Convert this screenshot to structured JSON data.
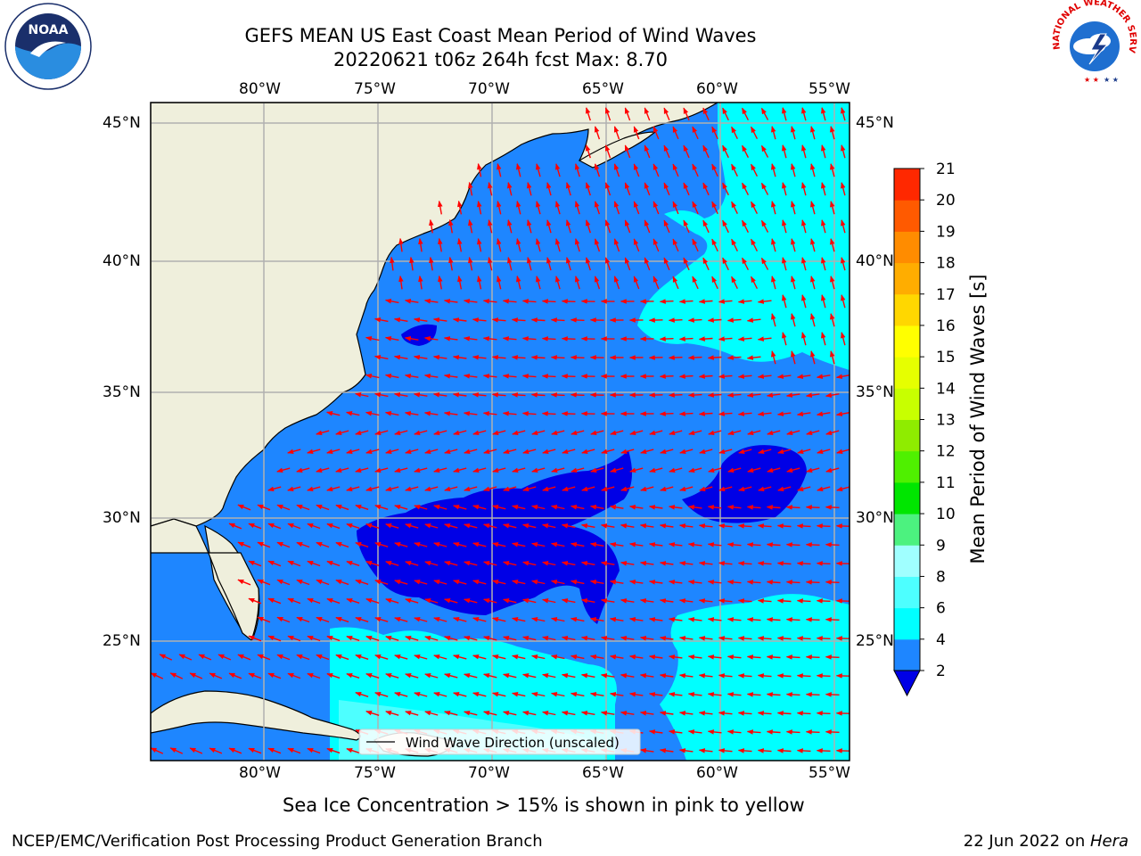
{
  "title": {
    "line1": "GEFS MEAN US East Coast Mean Period of Wind Waves",
    "line2": "20220621 t06z 264h fcst   Max: 8.70"
  },
  "logos": {
    "noaa_text": "NOAA",
    "noaa_ring_text": "NATIONAL OCEANIC AND ATMOSPHERIC ADMINISTRATION · U.S. DEPARTMENT OF COMMERCE",
    "nws_ring_text": "NATIONAL WEATHER SERVICE"
  },
  "map": {
    "lon_labels": [
      "80°W",
      "75°W",
      "70°W",
      "65°W",
      "60°W",
      "55°W"
    ],
    "lat_labels": [
      "45°N",
      "40°N",
      "35°N",
      "30°N",
      "25°N"
    ],
    "legend_label": "Wind Wave Direction (unscaled)",
    "colors": {
      "land": "#efefdc",
      "sea_2_4": "#1e86ff",
      "sea_below_2": "#0000e6",
      "sea_4_6": "#00ffff",
      "arrow": "#ff0000",
      "grid": "#b0b0b0"
    }
  },
  "colorbar": {
    "label": "Mean Period of Wind Waves [s]",
    "ticks": [
      "2",
      "4",
      "6",
      "8",
      "9",
      "10",
      "11",
      "12",
      "13",
      "14",
      "15",
      "16",
      "17",
      "18",
      "19",
      "20",
      "21"
    ],
    "colors": [
      "#1e86ff",
      "#00ffff",
      "#4dffff",
      "#a0ffff",
      "#4cf27f",
      "#00e600",
      "#4ff000",
      "#8fec00",
      "#c8ff00",
      "#e6ff00",
      "#ffff00",
      "#ffd700",
      "#ffad00",
      "#ff8c00",
      "#ff5a00",
      "#ff2800"
    ],
    "extend_color": "#0000e6"
  },
  "subtitle": "Sea Ice Concentration > 15% is shown in pink to yellow",
  "footer": {
    "left": "NCEP/EMC/Verification Post Processing Product Generation Branch",
    "right_prefix": "22 Jun 2022 on ",
    "right_machine": "Hera"
  }
}
